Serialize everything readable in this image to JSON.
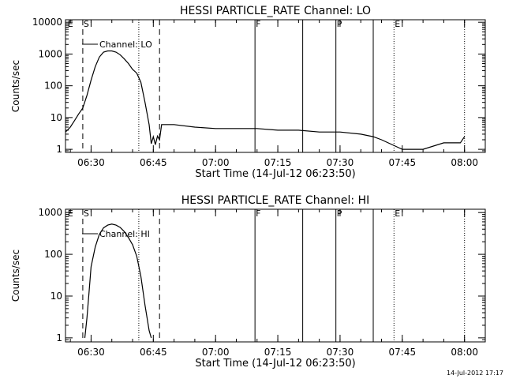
{
  "footer": {
    "timestamp": "14-Jul-2012 17:17"
  },
  "chart_data": [
    {
      "type": "line",
      "title": "HESSI PARTICLE_RATE Channel: LO",
      "xlabel": "Start Time (14-Jul-12 06:23:50)",
      "ylabel": "Counts/sec",
      "y_scale": "log",
      "ylim": [
        0.8,
        12000
      ],
      "xlim": [
        "06:23:50",
        "08:05:00"
      ],
      "x_ticks": [
        "06:30",
        "06:45",
        "07:00",
        "07:15",
        "07:30",
        "07:45",
        "08:00"
      ],
      "y_ticks": [
        "1",
        "10",
        "100",
        "1000",
        "10000"
      ],
      "legend": {
        "label": "Channel: LO",
        "placement": "top-left"
      },
      "flags": [
        {
          "label": "E",
          "time": "06:24:10"
        },
        {
          "label": "S",
          "time": "06:28:00"
        },
        {
          "label": "F",
          "time": "07:09:30"
        },
        {
          "label": "P",
          "time": "07:29:00"
        },
        {
          "label": "E",
          "time": "07:43:00"
        }
      ],
      "markers": [
        {
          "time": "06:28:00",
          "style": "dashed"
        },
        {
          "time": "06:41:30",
          "style": "dotted"
        },
        {
          "time": "06:46:30",
          "style": "dashed"
        },
        {
          "time": "07:09:30",
          "style": "solid"
        },
        {
          "time": "07:21:00",
          "style": "solid"
        },
        {
          "time": "07:29:00",
          "style": "solid"
        },
        {
          "time": "07:38:00",
          "style": "solid"
        },
        {
          "time": "07:43:00",
          "style": "dotted"
        },
        {
          "time": "08:00:00",
          "style": "dotted"
        }
      ],
      "series": [
        {
          "name": "Channel: LO",
          "x": [
            "06:23:50",
            "06:25:00",
            "06:26:00",
            "06:27:00",
            "06:28:00",
            "06:29:00",
            "06:30:00",
            "06:31:00",
            "06:32:00",
            "06:33:00",
            "06:34:00",
            "06:35:00",
            "06:36:00",
            "06:37:00",
            "06:38:00",
            "06:39:00",
            "06:40:00",
            "06:41:00",
            "06:42:00",
            "06:43:00",
            "06:44:00",
            "06:44:30",
            "06:45:00",
            "06:45:30",
            "06:46:00",
            "06:46:30",
            "06:47:00",
            "06:50:00",
            "06:55:00",
            "07:00:00",
            "07:05:00",
            "07:10:00",
            "07:15:00",
            "07:20:00",
            "07:25:00",
            "07:30:00",
            "07:35:00",
            "07:38:00",
            "07:40:00",
            "07:45:00",
            "07:50:00",
            "07:55:00",
            "07:59:00",
            "08:00:00"
          ],
          "y": [
            3.5,
            5,
            8,
            13,
            20,
            50,
            150,
            400,
            800,
            1150,
            1250,
            1250,
            1150,
            950,
            700,
            500,
            330,
            250,
            130,
            30,
            6,
            1.5,
            2.5,
            1.4,
            2.6,
            2,
            6,
            6,
            5,
            4.5,
            4.5,
            4.5,
            4,
            4,
            3.5,
            3.5,
            3,
            2.5,
            2,
            1,
            1,
            1.6,
            1.6,
            2.5
          ]
        }
      ]
    },
    {
      "type": "line",
      "title": "HESSI PARTICLE_RATE Channel: HI",
      "xlabel": "Start Time (14-Jul-12 06:23:50)",
      "ylabel": "Counts/sec",
      "y_scale": "log",
      "ylim": [
        0.8,
        1200
      ],
      "xlim": [
        "06:23:50",
        "08:05:00"
      ],
      "x_ticks": [
        "06:30",
        "06:45",
        "07:00",
        "07:15",
        "07:30",
        "07:45",
        "08:00"
      ],
      "y_ticks": [
        "1",
        "10",
        "100",
        "1000"
      ],
      "legend": {
        "label": "Channel: HI",
        "placement": "top-left"
      },
      "flags": [
        {
          "label": "E",
          "time": "06:24:10"
        },
        {
          "label": "S",
          "time": "06:28:00"
        },
        {
          "label": "F",
          "time": "07:09:30"
        },
        {
          "label": "P",
          "time": "07:29:00"
        },
        {
          "label": "E",
          "time": "07:43:00"
        }
      ],
      "markers": [
        {
          "time": "06:28:00",
          "style": "dashed"
        },
        {
          "time": "06:41:30",
          "style": "dotted"
        },
        {
          "time": "06:46:30",
          "style": "dashed"
        },
        {
          "time": "07:09:30",
          "style": "solid"
        },
        {
          "time": "07:21:00",
          "style": "solid"
        },
        {
          "time": "07:29:00",
          "style": "solid"
        },
        {
          "time": "07:38:00",
          "style": "solid"
        },
        {
          "time": "07:43:00",
          "style": "dotted"
        },
        {
          "time": "08:00:00",
          "style": "dotted"
        }
      ],
      "series": [
        {
          "name": "Channel: HI",
          "x": [
            "06:28:30",
            "06:29:00",
            "06:29:30",
            "06:30:00",
            "06:31:00",
            "06:32:00",
            "06:33:00",
            "06:34:00",
            "06:35:00",
            "06:36:00",
            "06:37:00",
            "06:38:00",
            "06:39:00",
            "06:40:00",
            "06:41:00",
            "06:42:00",
            "06:43:00",
            "06:44:00",
            "06:44:30"
          ],
          "y": [
            1,
            3,
            12,
            50,
            150,
            300,
            430,
            500,
            530,
            500,
            440,
            350,
            250,
            170,
            90,
            30,
            6,
            1.5,
            1
          ]
        }
      ]
    }
  ]
}
